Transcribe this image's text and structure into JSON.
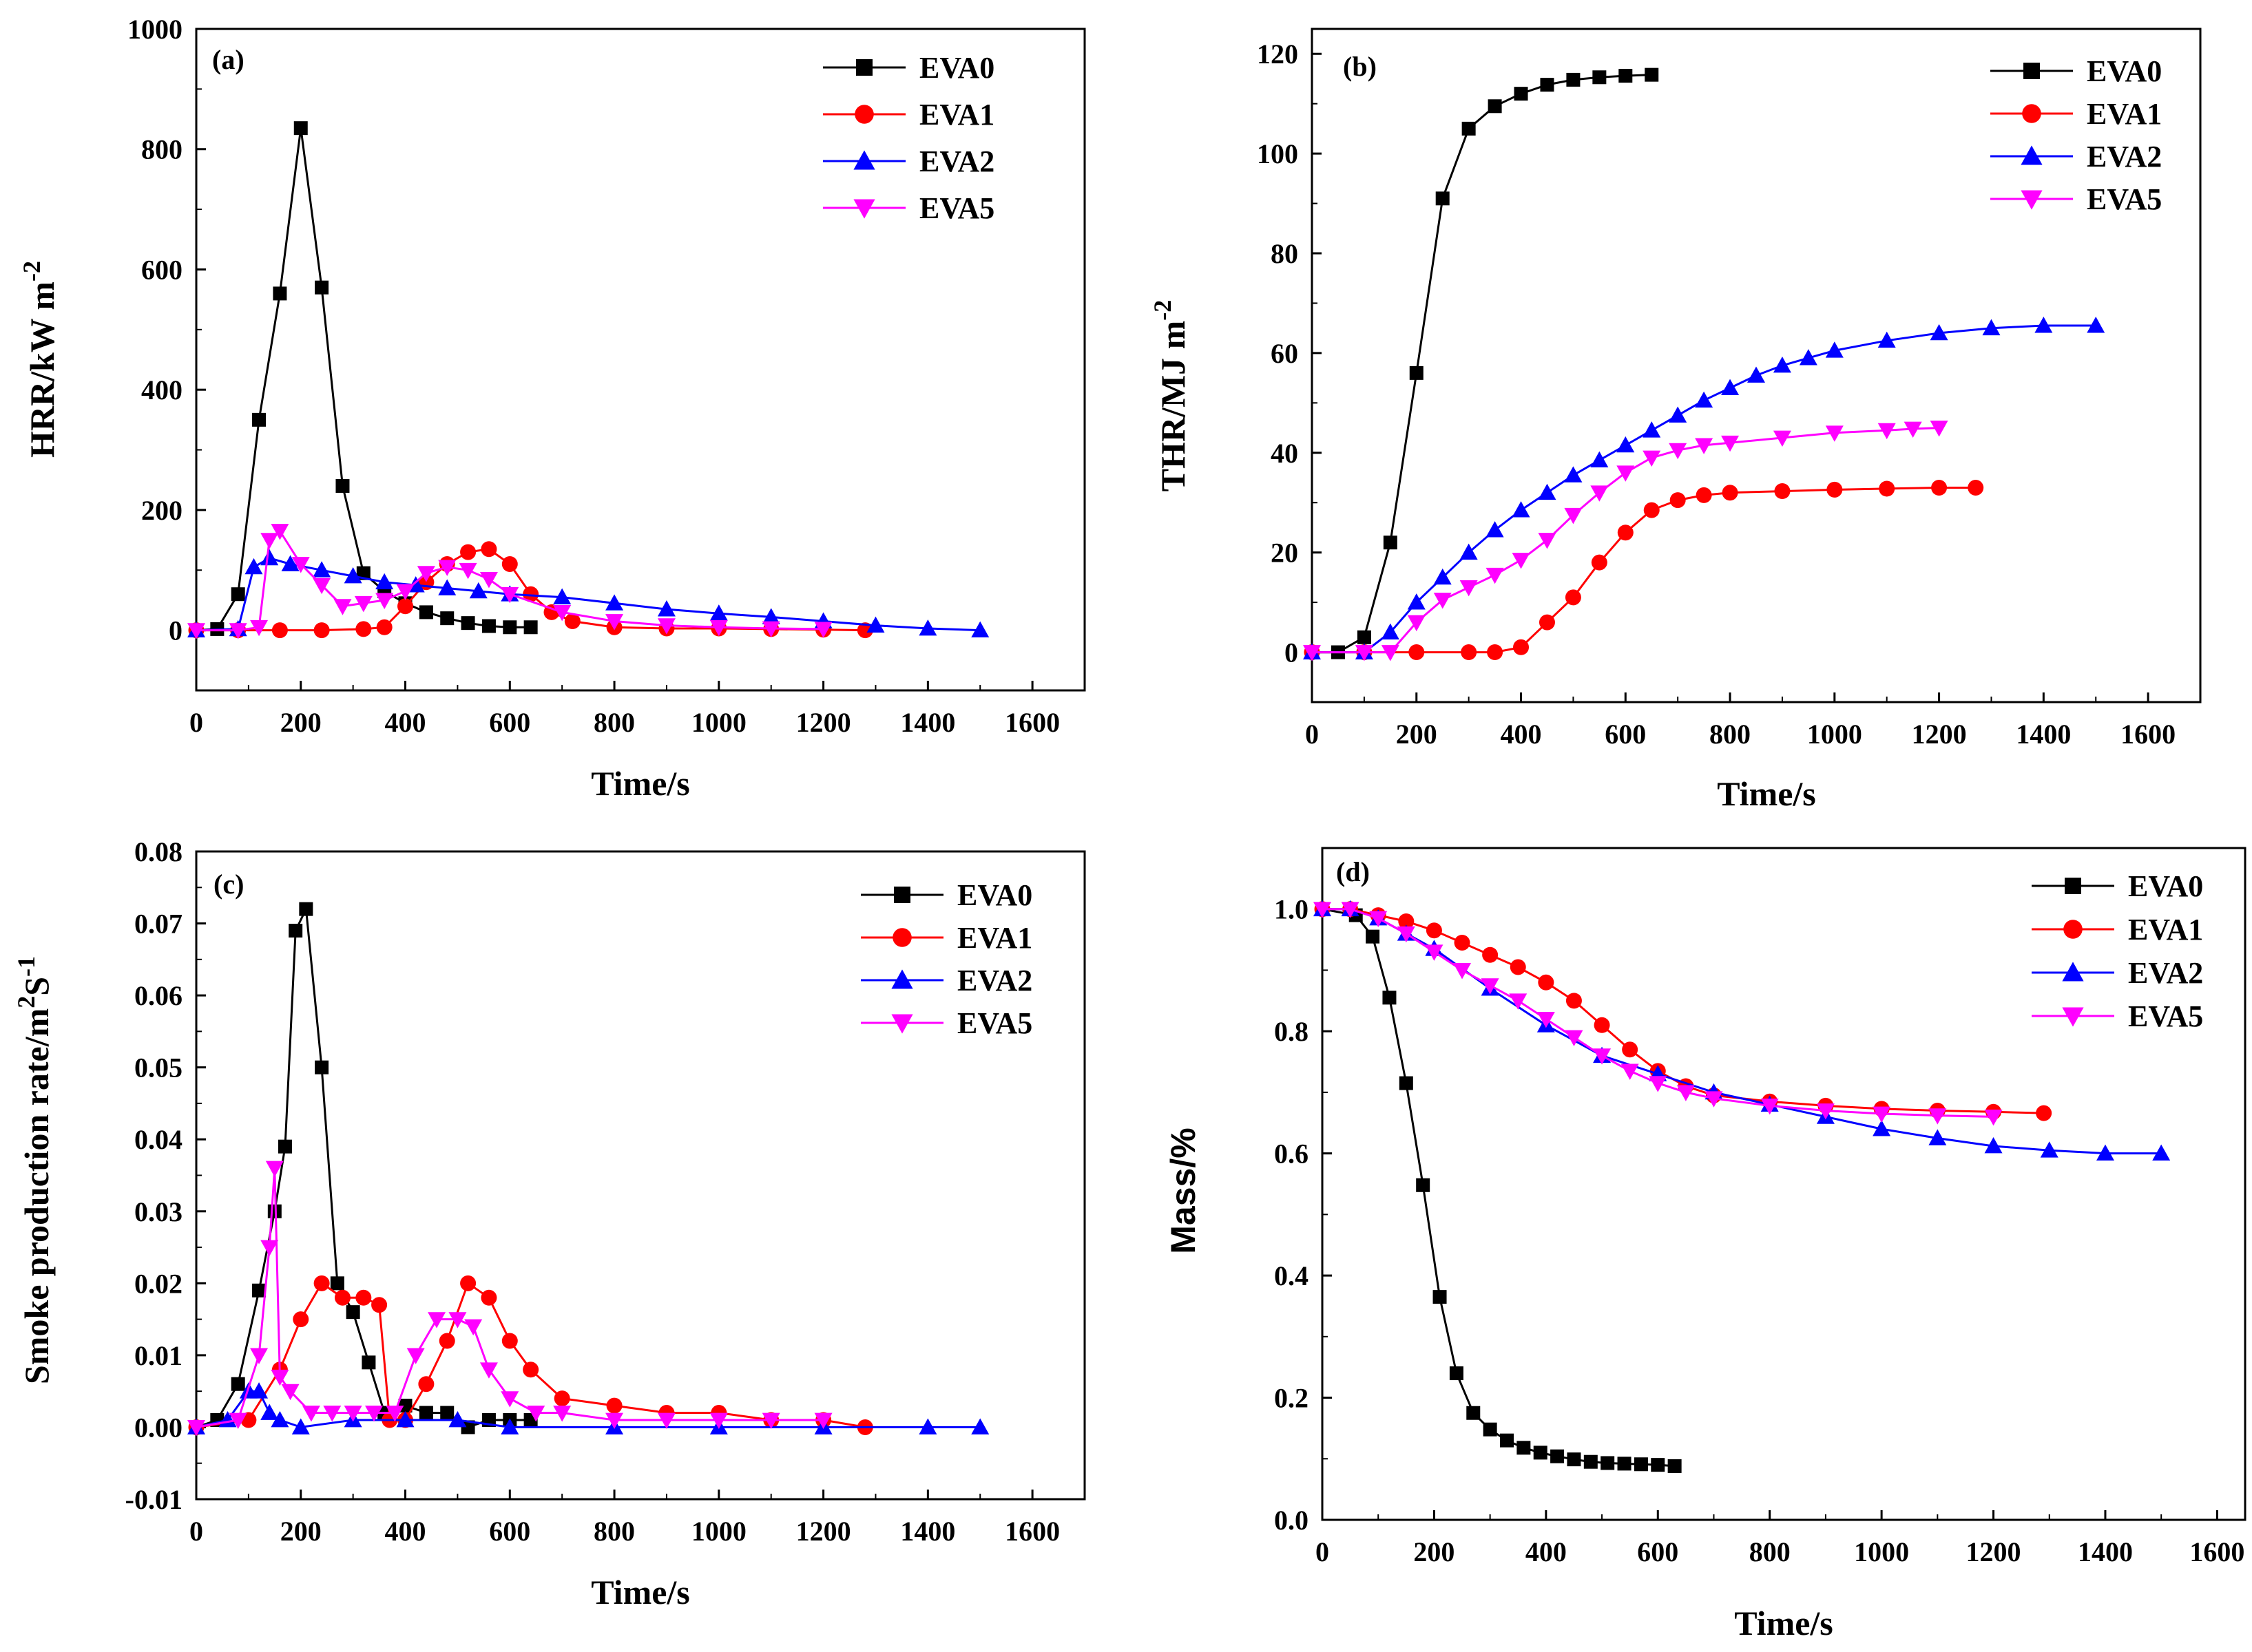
{
  "colors": {
    "EVA0": "#000000",
    "EVA1": "#ff0000",
    "EVA2": "#0000ff",
    "EVA5": "#ff00ff"
  },
  "chart_data": [
    {
      "type": "line",
      "panel_label": "(a)",
      "xlabel": "Time/s",
      "ylabel": "HRR/kW m",
      "ylabel_sup": "-2",
      "xlim": [
        0,
        1700
      ],
      "ylim": [
        -100,
        1000
      ],
      "xticks": [
        0,
        200,
        400,
        600,
        800,
        1000,
        1200,
        1400,
        1600
      ],
      "yticks": [
        0,
        200,
        400,
        600,
        800,
        1000
      ],
      "legend_position": "top-right",
      "series": [
        {
          "name": "EVA0",
          "marker": "square",
          "x": [
            0,
            40,
            80,
            120,
            160,
            200,
            240,
            280,
            320,
            360,
            400,
            440,
            480,
            520,
            560,
            600,
            640
          ],
          "y": [
            0,
            2,
            60,
            350,
            560,
            835,
            570,
            240,
            95,
            65,
            45,
            30,
            20,
            12,
            7,
            5,
            5
          ]
        },
        {
          "name": "EVA1",
          "marker": "circle",
          "x": [
            0,
            80,
            160,
            240,
            320,
            360,
            400,
            440,
            480,
            520,
            560,
            600,
            640,
            680,
            720,
            800,
            900,
            1000,
            1100,
            1200,
            1280
          ],
          "y": [
            0,
            0,
            0,
            0,
            2,
            5,
            40,
            80,
            110,
            130,
            135,
            110,
            60,
            30,
            15,
            5,
            3,
            3,
            2,
            1,
            0
          ]
        },
        {
          "name": "EVA2",
          "marker": "triangle-up",
          "x": [
            0,
            80,
            110,
            140,
            180,
            240,
            300,
            360,
            420,
            480,
            540,
            600,
            700,
            800,
            900,
            1000,
            1100,
            1200,
            1300,
            1400,
            1500
          ],
          "y": [
            0,
            2,
            105,
            120,
            110,
            100,
            90,
            80,
            75,
            70,
            65,
            60,
            55,
            45,
            35,
            28,
            22,
            15,
            8,
            3,
            0
          ]
        },
        {
          "name": "EVA5",
          "marker": "triangle-down",
          "x": [
            0,
            80,
            120,
            140,
            160,
            200,
            240,
            280,
            320,
            360,
            400,
            440,
            480,
            520,
            560,
            600,
            700,
            800,
            900,
            1000,
            1100,
            1200
          ],
          "y": [
            0,
            0,
            5,
            150,
            165,
            110,
            75,
            40,
            45,
            50,
            65,
            95,
            105,
            100,
            85,
            60,
            30,
            15,
            8,
            5,
            3,
            2
          ]
        }
      ]
    },
    {
      "type": "line",
      "panel_label": "(b)",
      "xlabel": "Time/s",
      "ylabel": "THR/MJ m",
      "ylabel_sup": "-2",
      "xlim": [
        0,
        1700
      ],
      "ylim": [
        -10,
        125
      ],
      "xticks": [
        0,
        200,
        400,
        600,
        800,
        1000,
        1200,
        1400,
        1600
      ],
      "yticks": [
        0,
        20,
        40,
        60,
        80,
        100,
        120
      ],
      "legend_position": "top-right",
      "series": [
        {
          "name": "EVA0",
          "marker": "square",
          "x": [
            0,
            50,
            100,
            150,
            200,
            250,
            300,
            350,
            400,
            450,
            500,
            550,
            600,
            650
          ],
          "y": [
            0,
            0,
            3,
            22,
            56,
            91,
            105,
            109.5,
            112,
            113.8,
            114.8,
            115.3,
            115.6,
            115.8
          ]
        },
        {
          "name": "EVA1",
          "marker": "circle",
          "x": [
            0,
            100,
            200,
            300,
            350,
            400,
            450,
            500,
            550,
            600,
            650,
            700,
            750,
            800,
            900,
            1000,
            1100,
            1200,
            1270
          ],
          "y": [
            0,
            0,
            0,
            0,
            0,
            1,
            6,
            11,
            18,
            24,
            28.5,
            30.5,
            31.5,
            32,
            32.3,
            32.6,
            32.8,
            33,
            33
          ]
        },
        {
          "name": "EVA2",
          "marker": "triangle-up",
          "x": [
            0,
            100,
            150,
            200,
            250,
            300,
            350,
            400,
            450,
            500,
            550,
            600,
            650,
            700,
            750,
            800,
            850,
            900,
            950,
            1000,
            1100,
            1200,
            1300,
            1400,
            1500
          ],
          "y": [
            0,
            0,
            4,
            10,
            15,
            20,
            24.5,
            28.5,
            32,
            35.5,
            38.5,
            41.5,
            44.5,
            47.5,
            50.5,
            53,
            55.5,
            57.5,
            59,
            60.5,
            62.5,
            64,
            65,
            65.5,
            65.5
          ]
        },
        {
          "name": "EVA5",
          "marker": "triangle-down",
          "x": [
            0,
            100,
            150,
            200,
            250,
            300,
            350,
            400,
            450,
            500,
            550,
            600,
            650,
            700,
            750,
            800,
            900,
            1000,
            1100,
            1150,
            1200
          ],
          "y": [
            0,
            0,
            0,
            6,
            10.5,
            13,
            15.5,
            18.5,
            22.5,
            27.5,
            32,
            36,
            39,
            40.5,
            41.5,
            42,
            43,
            44,
            44.5,
            44.8,
            45
          ]
        }
      ]
    },
    {
      "type": "line",
      "panel_label": "(c)",
      "xlabel": "Time/s",
      "ylabel": "Smoke production rate/m",
      "ylabel_sup": "2",
      "ylabel_mid": "S",
      "ylabel_sup2": "-1",
      "xlim": [
        0,
        1700
      ],
      "ylim": [
        -0.01,
        0.08
      ],
      "xticks": [
        0,
        200,
        400,
        600,
        800,
        1000,
        1200,
        1400,
        1600
      ],
      "yticks": [
        -0.01,
        0.0,
        0.01,
        0.02,
        0.03,
        0.04,
        0.05,
        0.06,
        0.07,
        0.08
      ],
      "ytick_decimals": 2,
      "legend_position": "top-right",
      "series": [
        {
          "name": "EVA0",
          "marker": "square",
          "x": [
            0,
            40,
            80,
            120,
            150,
            170,
            190,
            210,
            240,
            270,
            300,
            330,
            360,
            400,
            440,
            480,
            520,
            560,
            600,
            640
          ],
          "y": [
            0,
            0.001,
            0.006,
            0.019,
            0.03,
            0.039,
            0.069,
            0.072,
            0.05,
            0.02,
            0.016,
            0.009,
            0.002,
            0.003,
            0.002,
            0.002,
            0,
            0.001,
            0.001,
            0.001
          ]
        },
        {
          "name": "EVA1",
          "marker": "circle",
          "x": [
            0,
            100,
            160,
            200,
            240,
            280,
            320,
            350,
            370,
            400,
            440,
            480,
            520,
            560,
            600,
            640,
            700,
            800,
            900,
            1000,
            1100,
            1200,
            1280
          ],
          "y": [
            0,
            0.001,
            0.008,
            0.015,
            0.02,
            0.018,
            0.018,
            0.017,
            0.001,
            0.001,
            0.006,
            0.012,
            0.02,
            0.018,
            0.012,
            0.008,
            0.004,
            0.003,
            0.002,
            0.002,
            0.001,
            0.001,
            0
          ]
        },
        {
          "name": "EVA2",
          "marker": "triangle-up",
          "x": [
            0,
            60,
            100,
            120,
            140,
            160,
            200,
            300,
            400,
            500,
            600,
            800,
            1000,
            1200,
            1400,
            1500
          ],
          "y": [
            0,
            0.001,
            0.005,
            0.005,
            0.002,
            0.001,
            0,
            0.001,
            0.001,
            0.001,
            0,
            0,
            0,
            0,
            0,
            0
          ]
        },
        {
          "name": "EVA5",
          "marker": "triangle-down",
          "x": [
            0,
            80,
            120,
            140,
            150,
            160,
            180,
            220,
            260,
            300,
            340,
            380,
            420,
            460,
            500,
            530,
            560,
            600,
            650,
            700,
            800,
            900,
            1000,
            1100,
            1200
          ],
          "y": [
            0,
            0.001,
            0.01,
            0.025,
            0.036,
            0.007,
            0.005,
            0.002,
            0.002,
            0.002,
            0.002,
            0.002,
            0.01,
            0.015,
            0.015,
            0.014,
            0.008,
            0.004,
            0.002,
            0.002,
            0.001,
            0.001,
            0.001,
            0.001,
            0.001
          ]
        }
      ]
    },
    {
      "type": "line",
      "panel_label": "(d)",
      "xlabel": "Time/s",
      "ylabel": "Mass/%",
      "xlim": [
        0,
        1650
      ],
      "ylim": [
        0,
        1.1
      ],
      "xticks": [
        0,
        200,
        400,
        600,
        800,
        1000,
        1200,
        1400,
        1600
      ],
      "yticks": [
        0.0,
        0.2,
        0.4,
        0.6,
        0.8,
        1.0
      ],
      "ytick_decimals": 1,
      "legend_position": "top-right",
      "series": [
        {
          "name": "EVA0",
          "marker": "square",
          "x": [
            0,
            60,
            90,
            120,
            150,
            180,
            210,
            240,
            270,
            300,
            330,
            360,
            390,
            420,
            450,
            480,
            510,
            540,
            570,
            600,
            630
          ],
          "y": [
            1.0,
            0.99,
            0.955,
            0.855,
            0.715,
            0.548,
            0.365,
            0.24,
            0.175,
            0.148,
            0.13,
            0.118,
            0.11,
            0.104,
            0.099,
            0.095,
            0.093,
            0.092,
            0.091,
            0.09,
            0.088
          ]
        },
        {
          "name": "EVA1",
          "marker": "circle",
          "x": [
            0,
            50,
            100,
            150,
            200,
            250,
            300,
            350,
            400,
            450,
            500,
            550,
            600,
            650,
            700,
            800,
            900,
            1000,
            1100,
            1200,
            1290
          ],
          "y": [
            1.0,
            1.0,
            0.99,
            0.98,
            0.965,
            0.945,
            0.925,
            0.905,
            0.88,
            0.85,
            0.81,
            0.77,
            0.735,
            0.71,
            0.695,
            0.685,
            0.678,
            0.673,
            0.67,
            0.668,
            0.666
          ]
        },
        {
          "name": "EVA2",
          "marker": "triangle-up",
          "x": [
            0,
            50,
            100,
            150,
            200,
            300,
            400,
            500,
            600,
            700,
            800,
            900,
            1000,
            1100,
            1200,
            1300,
            1400,
            1500
          ],
          "y": [
            1.0,
            1.0,
            0.985,
            0.96,
            0.935,
            0.87,
            0.81,
            0.76,
            0.73,
            0.7,
            0.68,
            0.66,
            0.64,
            0.625,
            0.612,
            0.605,
            0.6,
            0.6
          ]
        },
        {
          "name": "EVA5",
          "marker": "triangle-down",
          "x": [
            0,
            50,
            100,
            150,
            200,
            250,
            300,
            350,
            400,
            450,
            500,
            550,
            600,
            650,
            700,
            800,
            900,
            1000,
            1100,
            1200
          ],
          "y": [
            1.0,
            1.0,
            0.985,
            0.96,
            0.93,
            0.9,
            0.875,
            0.85,
            0.82,
            0.79,
            0.76,
            0.735,
            0.715,
            0.7,
            0.69,
            0.678,
            0.67,
            0.665,
            0.662,
            0.66
          ]
        }
      ]
    }
  ]
}
